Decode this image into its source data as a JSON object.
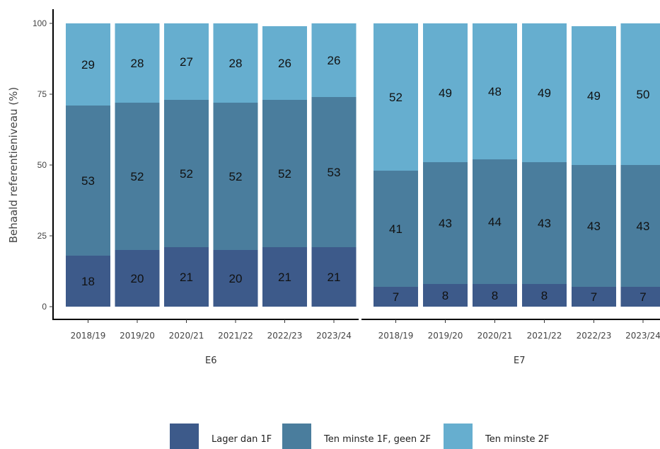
{
  "chart_data": {
    "type": "bar",
    "stacked": true,
    "ylabel": "Behaald referentieniveau (%)",
    "ylim": [
      0,
      100
    ],
    "yticks": [
      0,
      25,
      50,
      75,
      100
    ],
    "grid": false,
    "legend_position": "bottom",
    "colors": {
      "Lager dan 1F": "#3d5a8a",
      "Ten minste 1F, geen 2F": "#4a7d9d",
      "Ten minste 2F": "#66aecf"
    },
    "series_names": [
      "Lager dan 1F",
      "Ten minste 1F, geen 2F",
      "Ten minste 2F"
    ],
    "panels": [
      {
        "label": "E6",
        "categories": [
          "2018/19",
          "2019/20",
          "2020/21",
          "2021/22",
          "2022/23",
          "2023/24"
        ],
        "series": [
          {
            "name": "Lager dan 1F",
            "values": [
              18,
              20,
              21,
              20,
              21,
              21
            ]
          },
          {
            "name": "Ten minste 1F, geen 2F",
            "values": [
              53,
              52,
              52,
              52,
              52,
              53
            ]
          },
          {
            "name": "Ten minste 2F",
            "values": [
              29,
              28,
              27,
              28,
              26,
              26
            ]
          }
        ]
      },
      {
        "label": "E7",
        "categories": [
          "2018/19",
          "2019/20",
          "2020/21",
          "2021/22",
          "2022/23",
          "2023/24"
        ],
        "series": [
          {
            "name": "Lager dan 1F",
            "values": [
              7,
              8,
              8,
              8,
              7,
              7
            ]
          },
          {
            "name": "Ten minste 1F, geen 2F",
            "values": [
              41,
              43,
              44,
              43,
              43,
              43
            ]
          },
          {
            "name": "Ten minste 2F",
            "values": [
              52,
              49,
              48,
              49,
              49,
              50
            ]
          }
        ]
      }
    ]
  }
}
